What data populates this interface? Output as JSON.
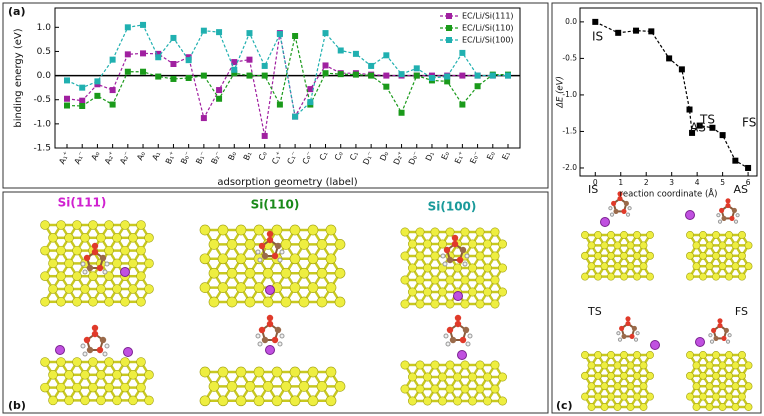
{
  "chart_data": [
    {
      "type": "line",
      "panel": "(a)",
      "xlabel": "adsorption geometry (label)",
      "ylabel": "binding energy (eV)",
      "categories": [
        "A₁⁺",
        "A₁⁻",
        "A₀",
        "A₂⁺",
        "A₂⁻",
        "A₀",
        "A₁",
        "B₁⁺",
        "B₀⁻",
        "B₁⁻",
        "B₂⁻",
        "B₀",
        "B₁",
        "C₀",
        "C₁⁺",
        "C₁⁻",
        "C₀⁻",
        "C₁",
        "C₀",
        "C₁",
        "D₁⁻",
        "D₀",
        "D₂⁺",
        "D₀⁻",
        "D₁",
        "E₀",
        "E₁⁺",
        "E₀⁻",
        "E₀",
        "E₁"
      ],
      "series": [
        {
          "name": "EC/Li/Si(111)",
          "color": "#a020a0",
          "values": [
            -0.48,
            -0.52,
            -0.18,
            -0.3,
            0.44,
            0.46,
            0.45,
            0.24,
            0.38,
            -0.88,
            -0.3,
            0.28,
            0.33,
            -1.25,
            0.88,
            -0.85,
            -0.28,
            0.21,
            0.05,
            0.05,
            0.02,
            0.0,
            0.0,
            0.0,
            0.0,
            0.0,
            0.0,
            0.0,
            0.0,
            0.0
          ]
        },
        {
          "name": "EC/Li/Si(110)",
          "color": "#1a9a1a",
          "values": [
            -0.62,
            -0.63,
            -0.42,
            -0.6,
            0.08,
            0.08,
            -0.02,
            -0.07,
            -0.05,
            0.0,
            -0.48,
            0.05,
            0.0,
            0.0,
            -0.6,
            0.82,
            -0.6,
            0.05,
            0.03,
            0.02,
            0.0,
            -0.23,
            -0.77,
            0.0,
            -0.1,
            -0.12,
            -0.6,
            -0.22,
            0.02,
            0.02
          ]
        },
        {
          "name": "EC/Li/Si(100)",
          "color": "#20b0b0",
          "values": [
            -0.1,
            -0.25,
            -0.12,
            0.33,
            1.0,
            1.05,
            0.38,
            0.78,
            0.32,
            0.93,
            0.9,
            0.12,
            0.88,
            0.2,
            0.86,
            -0.85,
            -0.55,
            0.88,
            0.52,
            0.45,
            0.2,
            0.42,
            0.03,
            0.15,
            -0.05,
            -0.02,
            0.47,
            0.0,
            0.0,
            0.0
          ]
        }
      ],
      "ylim": [
        -1.5,
        1.4
      ],
      "yticks": [
        {
          "value": -1.5,
          "label": "-1.5"
        },
        {
          "value": -1,
          "label": "-1.0"
        },
        {
          "value": -0.5,
          "label": "-0.5"
        },
        {
          "value": 0,
          "label": "0.0"
        },
        {
          "value": 0.5,
          "label": "0.5"
        },
        {
          "value": 1,
          "label": "1.0"
        }
      ],
      "zero_line": true,
      "legend": "upper right"
    },
    {
      "type": "scatter-line",
      "panel": "(c)",
      "xlabel": "reaction coordinate (Å)",
      "ylabel": "ΔE (eV)",
      "x": [
        0,
        0.9,
        1.6,
        2.2,
        2.9,
        3.4,
        3.7,
        3.8,
        4.1,
        4.6,
        5.0,
        5.5,
        6.0
      ],
      "values": [
        0,
        -0.15,
        -0.12,
        -0.13,
        -0.5,
        -0.65,
        -1.2,
        -1.52,
        -1.42,
        -1.45,
        -1.55,
        -1.9,
        -2.0
      ],
      "color": "#000000",
      "xlim": [
        -0.6,
        6.35
      ],
      "ylim": [
        -2.11,
        0.19
      ],
      "xticks": [
        0,
        1,
        2,
        3,
        4,
        5,
        6
      ],
      "yticks": [
        {
          "value": -2,
          "label": "-2.0"
        },
        {
          "value": -1.5,
          "label": "-1.5"
        },
        {
          "value": -1,
          "label": "-1.0"
        },
        {
          "value": -0.5,
          "label": "-0.5"
        },
        {
          "value": 0,
          "label": "0.0"
        }
      ],
      "annotations": [
        "IS",
        "TS",
        "AS",
        "FS"
      ]
    }
  ],
  "panel_b": {
    "label": "(b)",
    "surfaces": [
      "Si(111)",
      "Si(110)",
      "Si(100)"
    ]
  },
  "panel_c_structures": [
    "IS",
    "AS",
    "TS",
    "FS"
  ]
}
